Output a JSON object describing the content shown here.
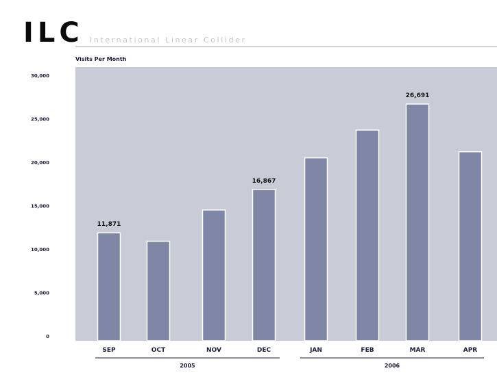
{
  "header": {
    "logo": "ILC",
    "subtitle": "International Linear Collider"
  },
  "chart_data": {
    "type": "bar",
    "title": "",
    "ylabel": "Visits Per Month",
    "xlabel": "",
    "ylim": [
      0,
      30000
    ],
    "yticks": [
      "0",
      "5,000",
      "10,000",
      "15,000",
      "20,000",
      "25,000",
      "30,000"
    ],
    "ytick_values": [
      0,
      5000,
      10000,
      15000,
      20000,
      25000,
      30000
    ],
    "categories": [
      "SEP",
      "OCT",
      "NOV",
      "DEC",
      "JAN",
      "FEB",
      "MAR",
      "APR"
    ],
    "values": [
      11871,
      10900,
      14500,
      16867,
      20500,
      23700,
      26691,
      21200
    ],
    "data_labels": [
      "11,871",
      "",
      "",
      "16,867",
      "",
      "",
      "26,691",
      ""
    ],
    "groups": [
      {
        "label": "2005",
        "categories": [
          "SEP",
          "OCT",
          "NOV",
          "DEC"
        ]
      },
      {
        "label": "2006",
        "categories": [
          "JAN",
          "FEB",
          "MAR",
          "APR"
        ]
      }
    ],
    "grid": false,
    "colors": {
      "plot_background": "#c9ccd7",
      "bar": "#7f86a6",
      "bar_edge": "#ffffff"
    }
  }
}
